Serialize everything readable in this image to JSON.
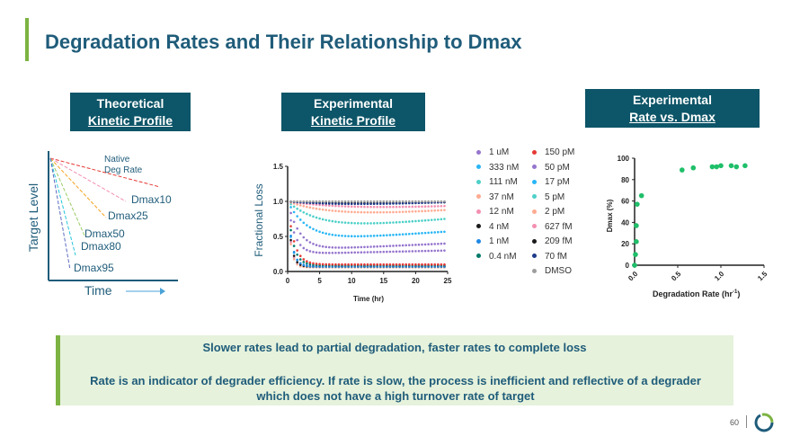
{
  "slide": {
    "title": "Degradation Rates and Their Relationship to Dmax",
    "page_number": "60",
    "accent_color": "#7cb342",
    "header_color": "#1f5c7a",
    "box_color": "#0d5568"
  },
  "boxes": {
    "theoretical": {
      "line1": "Theoretical",
      "line2": "Kinetic Profile"
    },
    "experimental": {
      "line1": "Experimental",
      "line2": "Kinetic Profile"
    },
    "rate_vs_dmax": {
      "line1": "Experimental",
      "line2": "Rate vs. Dmax"
    }
  },
  "theoretical": {
    "ylabel": "Target Level",
    "xlabel": "Time",
    "native_label_1": "Native",
    "native_label_2": "Deg Rate",
    "curves": [
      {
        "label": "Dmax10",
        "color": "#e53935"
      },
      {
        "label": "Dmax25",
        "color": "#f5a623"
      },
      {
        "label": "Dmax50",
        "color": "#9ccc65"
      },
      {
        "label": "Dmax80",
        "color": "#26c6da"
      },
      {
        "label": "Dmax95",
        "color": "#5c6bc0"
      }
    ]
  },
  "legend": {
    "col1": [
      {
        "label": "1 uM",
        "color": "#9575cd"
      },
      {
        "label": "333 nM",
        "color": "#29b6f6"
      },
      {
        "label": "111 nM",
        "color": "#4dd0c8"
      },
      {
        "label": "37 nM",
        "color": "#ffab91"
      },
      {
        "label": "12 nM",
        "color": "#f48fb1"
      },
      {
        "label": "4 nM",
        "color": "#1a1a1a"
      },
      {
        "label": "1 nM",
        "color": "#1e88e5"
      },
      {
        "label": "0.4 nM",
        "color": "#00796b"
      }
    ],
    "col2": [
      {
        "label": "150 pM",
        "color": "#e53935"
      },
      {
        "label": "50 pM",
        "color": "#9575cd"
      },
      {
        "label": "17 pM",
        "color": "#29b6f6"
      },
      {
        "label": "5 pM",
        "color": "#4dd0c8"
      },
      {
        "label": "2 pM",
        "color": "#ffab91"
      },
      {
        "label": "627 fM",
        "color": "#f48fb1"
      },
      {
        "label": "209 fM",
        "color": "#1a1a1a"
      },
      {
        "label": "70 fM",
        "color": "#1e3a8a"
      },
      {
        "label": "DMSO",
        "color": "#9e9e9e"
      }
    ]
  },
  "chart_data": [
    {
      "type": "scatter",
      "title": "Experimental Kinetic Profile",
      "xlabel": "Time (hr)",
      "ylabel": "Fractional Loss",
      "xlim": [
        0,
        25
      ],
      "ylim": [
        0,
        1.5
      ],
      "xticks": [
        "0",
        "5",
        "10",
        "15",
        "20",
        "25"
      ],
      "yticks": [
        "0.0",
        "0.5",
        "1.0",
        "1.5"
      ],
      "series": [
        {
          "name": "1 uM",
          "color": "#9575cd",
          "plateau": 0.25,
          "rate": 0.9,
          "recovery": 0.002
        },
        {
          "name": "333 nM",
          "color": "#29b6f6",
          "plateau": 0.08,
          "rate": 1.6,
          "recovery": 0
        },
        {
          "name": "111 nM",
          "color": "#4dd0c8",
          "plateau": 0.06,
          "rate": 1.9,
          "recovery": 0
        },
        {
          "name": "37 nM",
          "color": "#ffab91",
          "plateau": 0.06,
          "rate": 2.1,
          "recovery": 0
        },
        {
          "name": "12 nM",
          "color": "#f48fb1",
          "plateau": 0.08,
          "rate": 2.0,
          "recovery": 0
        },
        {
          "name": "4 nM",
          "color": "#1a1a1a",
          "plateau": 0.07,
          "rate": 1.8,
          "recovery": 0
        },
        {
          "name": "1 nM",
          "color": "#1e88e5",
          "plateau": 0.07,
          "rate": 1.5,
          "recovery": 0
        },
        {
          "name": "0.4 nM",
          "color": "#00796b",
          "plateau": 0.09,
          "rate": 1.2,
          "recovery": 0
        },
        {
          "name": "150 pM",
          "color": "#e53935",
          "plateau": 0.1,
          "rate": 1.0,
          "recovery": 0
        },
        {
          "name": "50 pM",
          "color": "#9575cd",
          "plateau": 0.3,
          "rate": 0.55,
          "recovery": 0.004
        },
        {
          "name": "17 pM",
          "color": "#29b6f6",
          "plateau": 0.42,
          "rate": 0.32,
          "recovery": 0.006
        },
        {
          "name": "5 pM",
          "color": "#4dd0c8",
          "plateau": 0.55,
          "rate": 0.2,
          "recovery": 0.008
        },
        {
          "name": "2 pM",
          "color": "#ffab91",
          "plateau": 0.72,
          "rate": 0.14,
          "recovery": 0.006
        },
        {
          "name": "627 fM",
          "color": "#f48fb1",
          "plateau": 0.82,
          "rate": 0.1,
          "recovery": 0.004
        },
        {
          "name": "209 fM",
          "color": "#1a1a1a",
          "plateau": 0.9,
          "rate": 0.08,
          "recovery": 0.003
        },
        {
          "name": "70 fM",
          "color": "#1e3a8a",
          "plateau": 0.88,
          "rate": 0.1,
          "recovery": 0.004
        },
        {
          "name": "DMSO",
          "color": "#9e9e9e",
          "plateau": 1.0,
          "rate": 0.0,
          "recovery": 0
        }
      ]
    },
    {
      "type": "scatter",
      "title": "Experimental Rate vs. Dmax",
      "xlabel": "Degradation Rate (hr",
      "xlabel_sup": "-1",
      "xlabel_close": ")",
      "ylabel": "Dmax (%)",
      "xlim": [
        0,
        1.5
      ],
      "ylim": [
        0,
        100
      ],
      "xticks": [
        "0.0",
        "0.5",
        "1.0",
        "1.5"
      ],
      "yticks": [
        "0",
        "20",
        "40",
        "60",
        "80",
        "100"
      ],
      "color": "#1fbf6a",
      "points": [
        {
          "x": 0.0,
          "y": 0
        },
        {
          "x": 0.01,
          "y": 10
        },
        {
          "x": 0.02,
          "y": 22
        },
        {
          "x": 0.02,
          "y": 37
        },
        {
          "x": 0.03,
          "y": 57
        },
        {
          "x": 0.08,
          "y": 65
        },
        {
          "x": 0.55,
          "y": 89
        },
        {
          "x": 0.68,
          "y": 91
        },
        {
          "x": 0.9,
          "y": 92
        },
        {
          "x": 0.95,
          "y": 92
        },
        {
          "x": 1.0,
          "y": 93
        },
        {
          "x": 1.12,
          "y": 93
        },
        {
          "x": 1.18,
          "y": 92
        },
        {
          "x": 1.28,
          "y": 93
        }
      ]
    }
  ],
  "bottom": {
    "line1": "Slower rates lead to partial degradation, faster rates to complete loss",
    "line2": "Rate is an indicator of degrader efficiency. If rate is slow, the process is inefficient and reflective of a degrader which does not have a high turnover rate of target"
  }
}
